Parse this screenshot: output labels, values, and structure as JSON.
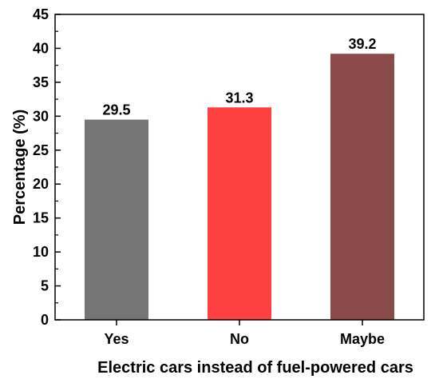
{
  "chart_data": {
    "type": "bar",
    "title": "",
    "xlabel": "Electric cars instead of fuel-powered cars",
    "ylabel": "Percentage (%)",
    "categories": [
      "Yes",
      "No",
      "Maybe"
    ],
    "values": [
      29.5,
      31.3,
      39.2
    ],
    "value_labels": [
      "29.5",
      "31.3",
      "39.2"
    ],
    "colors": [
      "#757575",
      "#ff4040",
      "#8b4a4a"
    ],
    "ylim": [
      0,
      45
    ],
    "yticks": [
      "0",
      "5",
      "10",
      "15",
      "20",
      "25",
      "30",
      "35",
      "40",
      "45"
    ],
    "grid": false,
    "legend": "none"
  }
}
